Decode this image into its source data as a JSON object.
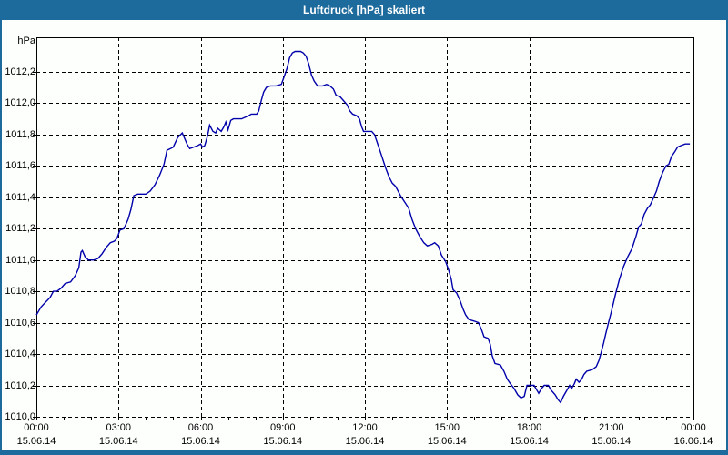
{
  "window": {
    "title": "Luftdruck [hPa] skaliert"
  },
  "colors": {
    "titlebar": "#1d6a9c",
    "frame": "#1d6a9c",
    "background": "#fdfffd",
    "line": "#0000aa",
    "grid": "#000000",
    "text": "#000000"
  },
  "chart_data": {
    "type": "line",
    "title": "Luftdruck [hPa] skaliert",
    "ylabel": "hPa",
    "xlabel": "",
    "grid": true,
    "legend": false,
    "ylim": [
      1010.0,
      1012.42
    ],
    "xlim_hours": [
      0,
      24
    ],
    "y_tick_step": 0.2,
    "x_minor_tick_hours": 1,
    "y_ticks": [
      {
        "value": 1012.2,
        "label": "1012,2"
      },
      {
        "value": 1012.0,
        "label": "1012,0"
      },
      {
        "value": 1011.8,
        "label": "1011,8"
      },
      {
        "value": 1011.6,
        "label": "1011,6"
      },
      {
        "value": 1011.4,
        "label": "1011,4"
      },
      {
        "value": 1011.2,
        "label": "1011,2"
      },
      {
        "value": 1011.0,
        "label": "1011,0"
      },
      {
        "value": 1010.8,
        "label": "1010,8"
      },
      {
        "value": 1010.6,
        "label": "1010,6"
      },
      {
        "value": 1010.4,
        "label": "1010,4"
      },
      {
        "value": 1010.2,
        "label": "1010,2"
      },
      {
        "value": 1010.0,
        "label": "1010,0"
      }
    ],
    "x_ticks": [
      {
        "hour": 0,
        "time": "00:00",
        "date": "15.06.14"
      },
      {
        "hour": 3,
        "time": "03:00",
        "date": "15.06.14"
      },
      {
        "hour": 6,
        "time": "06:00",
        "date": "15.06.14"
      },
      {
        "hour": 9,
        "time": "09:00",
        "date": "15.06.14"
      },
      {
        "hour": 12,
        "time": "12:00",
        "date": "15.06.14"
      },
      {
        "hour": 15,
        "time": "15:00",
        "date": "15.06.14"
      },
      {
        "hour": 18,
        "time": "18:00",
        "date": "15.06.14"
      },
      {
        "hour": 21,
        "time": "21:00",
        "date": "15.06.14"
      },
      {
        "hour": 24,
        "time": "00:00",
        "date": "16.06.14"
      }
    ],
    "series": [
      {
        "name": "Luftdruck [hPa]",
        "color": "#0000aa",
        "points": [
          [
            0.0,
            1010.65
          ],
          [
            0.17,
            1010.7
          ],
          [
            0.33,
            1010.73
          ],
          [
            0.5,
            1010.76
          ],
          [
            0.62,
            1010.8
          ],
          [
            0.75,
            1010.8
          ],
          [
            0.9,
            1010.82
          ],
          [
            1.05,
            1010.85
          ],
          [
            1.25,
            1010.86
          ],
          [
            1.42,
            1010.9
          ],
          [
            1.55,
            1010.95
          ],
          [
            1.63,
            1011.05
          ],
          [
            1.68,
            1011.06
          ],
          [
            1.78,
            1011.02
          ],
          [
            1.9,
            1011.0
          ],
          [
            2.1,
            1011.0
          ],
          [
            2.25,
            1011.01
          ],
          [
            2.4,
            1011.04
          ],
          [
            2.55,
            1011.08
          ],
          [
            2.7,
            1011.11
          ],
          [
            2.85,
            1011.12
          ],
          [
            2.95,
            1011.14
          ],
          [
            3.05,
            1011.19
          ],
          [
            3.2,
            1011.2
          ],
          [
            3.35,
            1011.26
          ],
          [
            3.45,
            1011.32
          ],
          [
            3.56,
            1011.41
          ],
          [
            3.7,
            1011.42
          ],
          [
            4.0,
            1011.42
          ],
          [
            4.16,
            1011.44
          ],
          [
            4.33,
            1011.48
          ],
          [
            4.5,
            1011.54
          ],
          [
            4.66,
            1011.61
          ],
          [
            4.77,
            1011.7
          ],
          [
            4.9,
            1011.71
          ],
          [
            5.0,
            1011.72
          ],
          [
            5.16,
            1011.78
          ],
          [
            5.33,
            1011.81
          ],
          [
            5.5,
            1011.74
          ],
          [
            5.6,
            1011.71
          ],
          [
            5.75,
            1011.72
          ],
          [
            5.9,
            1011.73
          ],
          [
            6.0,
            1011.74
          ],
          [
            6.07,
            1011.72
          ],
          [
            6.15,
            1011.73
          ],
          [
            6.25,
            1011.79
          ],
          [
            6.33,
            1011.86
          ],
          [
            6.45,
            1011.82
          ],
          [
            6.55,
            1011.81
          ],
          [
            6.62,
            1011.84
          ],
          [
            6.75,
            1011.82
          ],
          [
            6.85,
            1011.85
          ],
          [
            6.92,
            1011.88
          ],
          [
            7.0,
            1011.83
          ],
          [
            7.1,
            1011.89
          ],
          [
            7.2,
            1011.9
          ],
          [
            7.5,
            1011.9
          ],
          [
            7.75,
            1011.92
          ],
          [
            7.85,
            1011.93
          ],
          [
            8.05,
            1011.93
          ],
          [
            8.12,
            1011.95
          ],
          [
            8.22,
            1012.02
          ],
          [
            8.3,
            1012.07
          ],
          [
            8.4,
            1012.1
          ],
          [
            8.55,
            1012.11
          ],
          [
            8.75,
            1012.11
          ],
          [
            8.95,
            1012.12
          ],
          [
            9.05,
            1012.17
          ],
          [
            9.15,
            1012.22
          ],
          [
            9.25,
            1012.29
          ],
          [
            9.35,
            1012.32
          ],
          [
            9.45,
            1012.33
          ],
          [
            9.65,
            1012.33
          ],
          [
            9.75,
            1012.32
          ],
          [
            9.85,
            1012.3
          ],
          [
            9.95,
            1012.25
          ],
          [
            10.05,
            1012.18
          ],
          [
            10.15,
            1012.14
          ],
          [
            10.27,
            1012.11
          ],
          [
            10.45,
            1012.11
          ],
          [
            10.6,
            1012.12
          ],
          [
            10.72,
            1012.11
          ],
          [
            10.85,
            1012.09
          ],
          [
            10.95,
            1012.05
          ],
          [
            11.1,
            1012.04
          ],
          [
            11.25,
            1012.01
          ],
          [
            11.35,
            1011.99
          ],
          [
            11.45,
            1011.95
          ],
          [
            11.55,
            1011.93
          ],
          [
            11.7,
            1011.92
          ],
          [
            11.8,
            1011.9
          ],
          [
            11.88,
            1011.85
          ],
          [
            11.95,
            1011.82
          ],
          [
            12.25,
            1011.82
          ],
          [
            12.35,
            1011.8
          ],
          [
            12.45,
            1011.75
          ],
          [
            12.6,
            1011.67
          ],
          [
            12.75,
            1011.59
          ],
          [
            12.88,
            1011.53
          ],
          [
            13.0,
            1011.49
          ],
          [
            13.12,
            1011.47
          ],
          [
            13.3,
            1011.41
          ],
          [
            13.45,
            1011.37
          ],
          [
            13.6,
            1011.33
          ],
          [
            13.72,
            1011.26
          ],
          [
            13.85,
            1011.2
          ],
          [
            14.0,
            1011.15
          ],
          [
            14.15,
            1011.11
          ],
          [
            14.28,
            1011.09
          ],
          [
            14.45,
            1011.1
          ],
          [
            14.55,
            1011.11
          ],
          [
            14.68,
            1011.09
          ],
          [
            14.8,
            1011.03
          ],
          [
            14.95,
            1010.99
          ],
          [
            15.05,
            1010.94
          ],
          [
            15.15,
            1010.88
          ],
          [
            15.22,
            1010.81
          ],
          [
            15.35,
            1010.79
          ],
          [
            15.48,
            1010.74
          ],
          [
            15.58,
            1010.69
          ],
          [
            15.68,
            1010.65
          ],
          [
            15.8,
            1010.62
          ],
          [
            16.0,
            1010.61
          ],
          [
            16.15,
            1010.6
          ],
          [
            16.25,
            1010.56
          ],
          [
            16.35,
            1010.51
          ],
          [
            16.5,
            1010.5
          ],
          [
            16.58,
            1010.46
          ],
          [
            16.65,
            1010.39
          ],
          [
            16.75,
            1010.34
          ],
          [
            16.95,
            1010.33
          ],
          [
            17.08,
            1010.29
          ],
          [
            17.2,
            1010.24
          ],
          [
            17.32,
            1010.21
          ],
          [
            17.45,
            1010.18
          ],
          [
            17.58,
            1010.14
          ],
          [
            17.7,
            1010.12
          ],
          [
            17.82,
            1010.13
          ],
          [
            17.92,
            1010.2
          ],
          [
            18.18,
            1010.2
          ],
          [
            18.28,
            1010.17
          ],
          [
            18.35,
            1010.15
          ],
          [
            18.45,
            1010.18
          ],
          [
            18.55,
            1010.2
          ],
          [
            18.7,
            1010.2
          ],
          [
            18.8,
            1010.17
          ],
          [
            18.95,
            1010.14
          ],
          [
            19.05,
            1010.11
          ],
          [
            19.15,
            1010.09
          ],
          [
            19.25,
            1010.13
          ],
          [
            19.35,
            1010.16
          ],
          [
            19.48,
            1010.2
          ],
          [
            19.55,
            1010.18
          ],
          [
            19.65,
            1010.21
          ],
          [
            19.72,
            1010.24
          ],
          [
            19.82,
            1010.22
          ],
          [
            19.92,
            1010.24
          ],
          [
            20.0,
            1010.27
          ],
          [
            20.1,
            1010.29
          ],
          [
            20.3,
            1010.3
          ],
          [
            20.45,
            1010.32
          ],
          [
            20.55,
            1010.36
          ],
          [
            20.63,
            1010.41
          ],
          [
            20.72,
            1010.47
          ],
          [
            20.8,
            1010.53
          ],
          [
            20.9,
            1010.6
          ],
          [
            21.0,
            1010.67
          ],
          [
            21.15,
            1010.78
          ],
          [
            21.3,
            1010.88
          ],
          [
            21.45,
            1010.96
          ],
          [
            21.6,
            1011.02
          ],
          [
            21.75,
            1011.07
          ],
          [
            21.9,
            1011.15
          ],
          [
            22.0,
            1011.21
          ],
          [
            22.1,
            1011.23
          ],
          [
            22.2,
            1011.29
          ],
          [
            22.32,
            1011.33
          ],
          [
            22.42,
            1011.35
          ],
          [
            22.55,
            1011.4
          ],
          [
            22.65,
            1011.44
          ],
          [
            22.75,
            1011.5
          ],
          [
            22.88,
            1011.56
          ],
          [
            23.0,
            1011.6
          ],
          [
            23.1,
            1011.61
          ],
          [
            23.2,
            1011.66
          ],
          [
            23.32,
            1011.69
          ],
          [
            23.42,
            1011.72
          ],
          [
            23.55,
            1011.73
          ],
          [
            23.7,
            1011.74
          ],
          [
            23.87,
            1011.74
          ]
        ]
      }
    ]
  }
}
